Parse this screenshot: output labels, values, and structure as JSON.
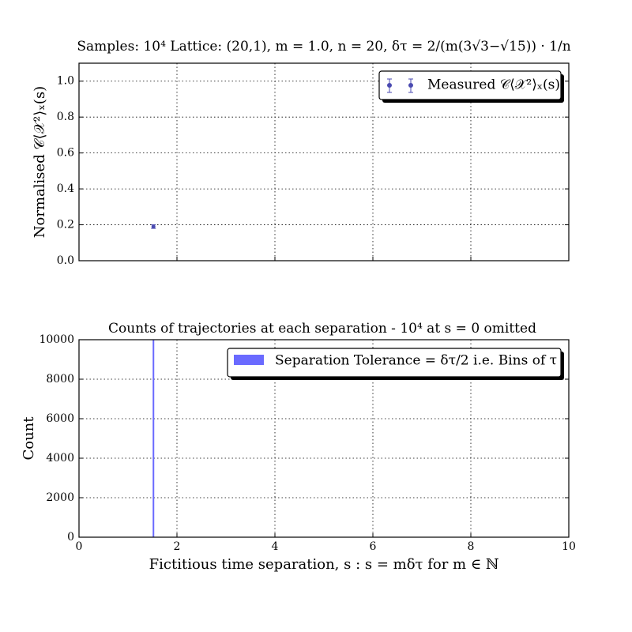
{
  "chart_data": [
    {
      "type": "scatter",
      "title": "Samples: 10⁴ Lattice: (20,1), m = 1.0, n = 20, δτ = 2/(m(3√3−√15)) · 1/n",
      "xlabel": "",
      "ylabel": "Normalised 𝒞⟨𝒳²⟩ₓ(s)",
      "xlim": [
        0,
        10
      ],
      "ylim": [
        0,
        1.1
      ],
      "x_ticks": [
        0,
        2,
        4,
        6,
        8,
        10
      ],
      "y_ticks": [
        "0.0",
        "0.2",
        "0.4",
        "0.6",
        "0.8",
        "1.0"
      ],
      "grid": true,
      "legend_position": "top-right",
      "series": [
        {
          "name": "Measured 𝒞⟨𝒳²⟩ₓ(s)",
          "color": "#4a4ab0",
          "points": [
            {
              "x": 1.52,
              "y": 0.19,
              "err": 0.01
            }
          ]
        }
      ]
    },
    {
      "type": "bar",
      "title": "Counts of trajectories at each separation - 10⁴ at s = 0 omitted",
      "xlabel": "Fictitious time separation, s : s = mδτ for m ∈ ℕ",
      "ylabel": "Count",
      "xlim": [
        0,
        10
      ],
      "ylim": [
        0,
        10000
      ],
      "x_ticks": [
        "0",
        "2",
        "4",
        "6",
        "8",
        "10"
      ],
      "y_ticks": [
        "0",
        "2000",
        "4000",
        "6000",
        "8000",
        "10000"
      ],
      "grid": true,
      "legend_position": "top-right",
      "series": [
        {
          "name": "Separation Tolerance = δτ/2 i.e. Bins of τ",
          "color": "#6a6aff",
          "bars": [
            {
              "x": 1.52,
              "value": 10000
            }
          ]
        }
      ]
    }
  ]
}
